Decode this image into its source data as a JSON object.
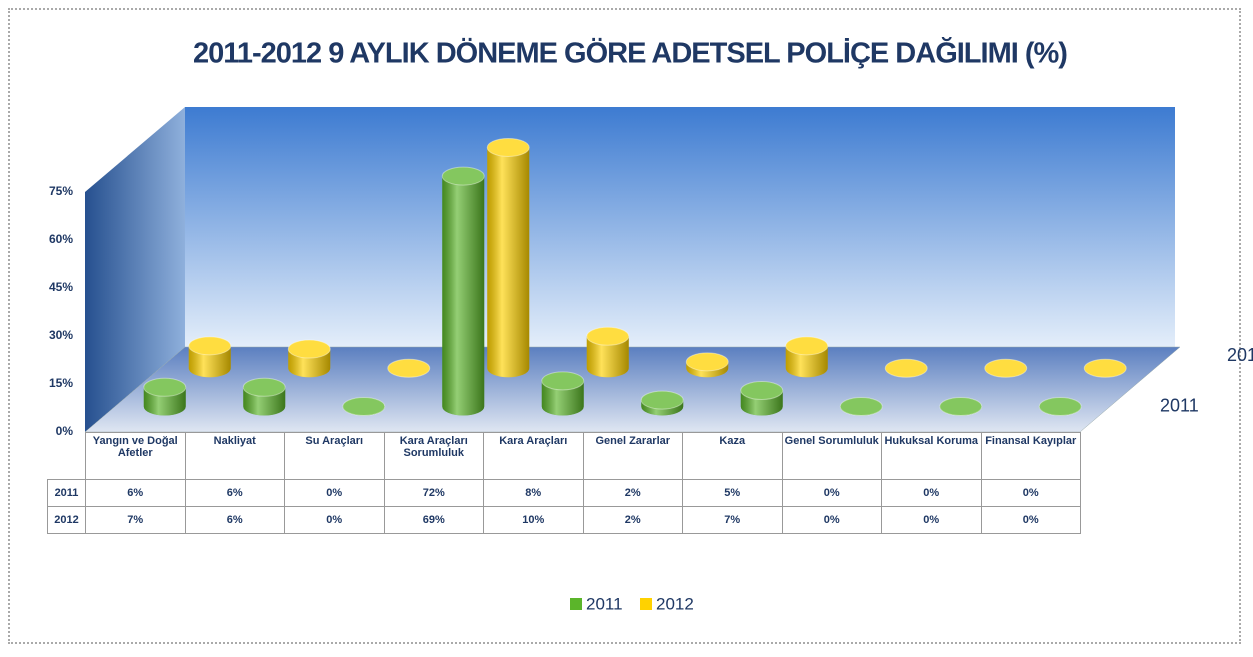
{
  "chart_data": {
    "type": "bar3d",
    "title": "2011-2012  9 AYLIK DÖNEME GÖRE ADETSEL POLİÇE DAĞILIMI (%)",
    "categories": [
      "Yangın ve Doğal Afetler",
      "Nakliyat",
      "Su Araçları",
      "Kara Araçları Sorumluluk",
      "Kara Araçları",
      "Genel Zararlar",
      "Kaza",
      "Genel Sorumluluk",
      "Hukuksal Koruma",
      "Finansal Kayıplar"
    ],
    "series": [
      {
        "name": "2011",
        "color": "#5bb52a",
        "values": [
          6,
          6,
          0,
          72,
          8,
          2,
          5,
          0,
          0,
          0
        ],
        "value_labels": [
          "6%",
          "6%",
          "0%",
          "72%",
          "8%",
          "2%",
          "5%",
          "0%",
          "0%",
          "0%"
        ]
      },
      {
        "name": "2012",
        "color": "#ffd200",
        "values": [
          7,
          6,
          0,
          69,
          10,
          2,
          7,
          0,
          0,
          0
        ],
        "value_labels": [
          "7%",
          "6%",
          "0%",
          "69%",
          "10%",
          "2%",
          "7%",
          "0%",
          "0%",
          "0%"
        ]
      }
    ],
    "ylim": [
      0,
      75
    ],
    "yticks": [
      {
        "value": 0,
        "label": "0%"
      },
      {
        "value": 15,
        "label": "15%"
      },
      {
        "value": 30,
        "label": "30%"
      },
      {
        "value": 45,
        "label": "45%"
      },
      {
        "value": 60,
        "label": "60%"
      },
      {
        "value": 75,
        "label": "75%"
      }
    ],
    "legend": "bottom"
  }
}
